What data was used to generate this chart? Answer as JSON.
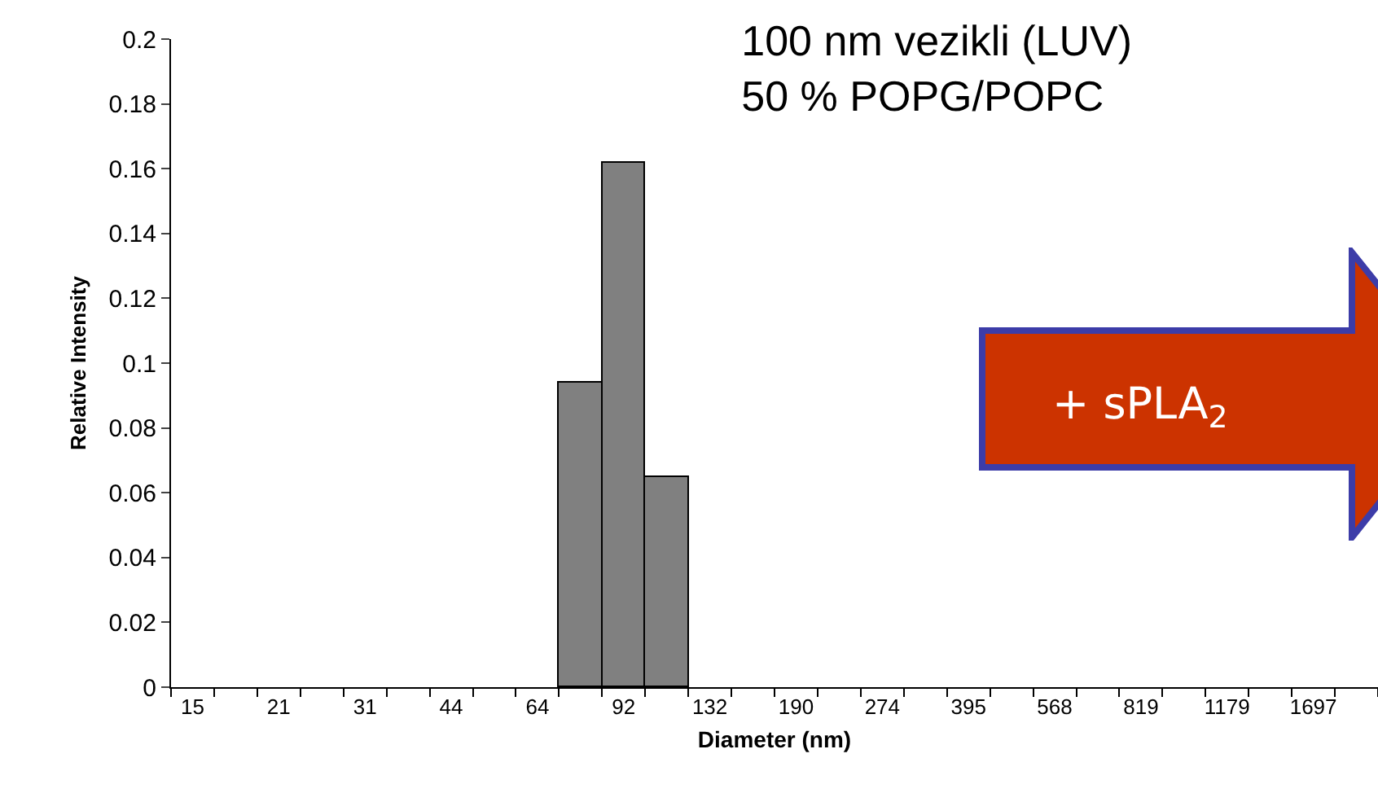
{
  "chart_data": {
    "type": "bar",
    "title": "100 nm vezikli (LUV)\n50 % POPG/POPC",
    "xlabel": "Diameter (nm)",
    "ylabel": "Relative Intensity",
    "categories": [
      "15",
      null,
      "21",
      null,
      "31",
      null,
      "44",
      null,
      "64",
      null,
      "92",
      null,
      "132",
      null,
      "190",
      null,
      "274",
      null,
      "395",
      null,
      "568",
      null,
      "819",
      null,
      "1179",
      null,
      "1697",
      null
    ],
    "values": [
      0,
      0,
      0,
      0,
      0,
      0,
      0,
      0,
      0,
      0.094,
      0.162,
      0.065,
      0,
      0,
      0,
      0,
      0,
      0,
      0,
      0,
      0,
      0,
      0,
      0,
      0,
      0,
      0,
      0
    ],
    "color": "#808080",
    "ylim": [
      0,
      0.2
    ],
    "yticks": [
      0,
      0.02,
      0.04,
      0.06,
      0.08,
      0.1,
      0.12,
      0.14,
      0.16,
      0.18,
      0.2
    ],
    "annotations": [
      "+ sPLA$_{2}$"
    ],
    "grid": false
  }
}
